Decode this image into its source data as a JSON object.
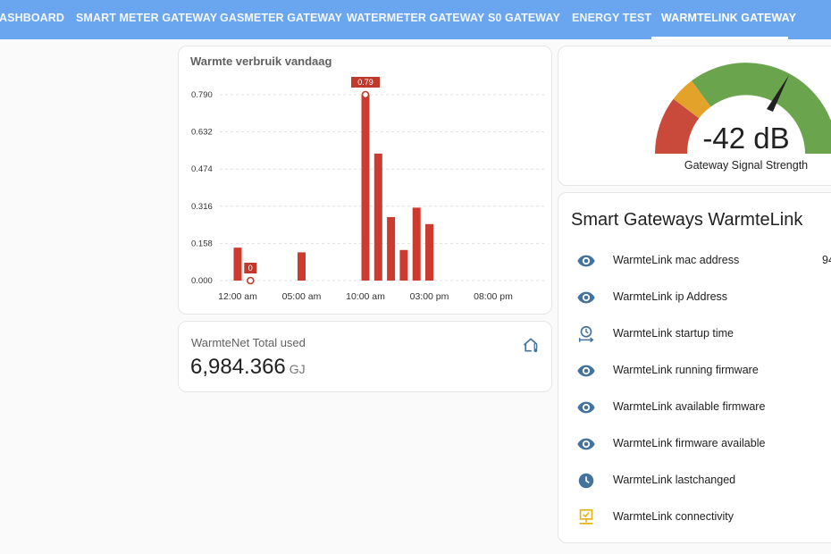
{
  "nav": {
    "tabs": [
      {
        "label": "ASHBOARD"
      },
      {
        "label": "SMART METER GATEWAY"
      },
      {
        "label": "GASMETER GATEWAY"
      },
      {
        "label": "WATERMETER GATEWAY"
      },
      {
        "label": "S0 GATEWAY"
      },
      {
        "label": "ENERGY TEST"
      },
      {
        "label": "WARMTELINK GATEWAY"
      }
    ],
    "active_index": 6
  },
  "chart_card": {
    "title": "Warmte verbruik vandaag"
  },
  "chart_data": {
    "type": "bar",
    "title": "Warmte verbruik vandaag",
    "x_tick_labels": [
      "12:00 am",
      "05:00 am",
      "10:00 am",
      "03:00 pm",
      "08:00 pm"
    ],
    "y_tick_labels": [
      "0.000",
      "0.158",
      "0.316",
      "0.474",
      "0.632",
      "0.790"
    ],
    "ylim": [
      0,
      0.79
    ],
    "hours": [
      0,
      1,
      5,
      10,
      11,
      12,
      13,
      14,
      15
    ],
    "values": [
      0.14,
      0.0,
      0.12,
      0.79,
      0.54,
      0.27,
      0.13,
      0.31,
      0.24
    ],
    "annotations": [
      {
        "hour": 10,
        "text": "0.79"
      },
      {
        "hour": 1,
        "text": "0"
      }
    ],
    "grid": true,
    "color": "#cc3b2d"
  },
  "total_card": {
    "title": "WarmteNet Total used",
    "value": "6,984.366",
    "unit": "GJ",
    "icon": "home-thermometer-icon"
  },
  "gauge": {
    "value": "-42 dB",
    "label": "Gateway Signal Strength",
    "colors": {
      "red": "#c94a3b",
      "yellow": "#e3a32b",
      "green": "#6aa44c"
    }
  },
  "entities_card": {
    "title": "Smart Gateways WarmteLink",
    "rows": [
      {
        "icon": "eye-icon",
        "label": "WarmteLink mac address",
        "value": "94"
      },
      {
        "icon": "eye-icon",
        "label": "WarmteLink ip Address",
        "value": ""
      },
      {
        "icon": "timer-restart-icon",
        "label": "WarmteLink startup time",
        "value": ""
      },
      {
        "icon": "eye-icon",
        "label": "WarmteLink running firmware",
        "value": ""
      },
      {
        "icon": "eye-icon",
        "label": "WarmteLink available firmware",
        "value": ""
      },
      {
        "icon": "eye-icon",
        "label": "WarmteLink firmware available",
        "value": ""
      },
      {
        "icon": "clock-icon",
        "label": "WarmteLink lastchanged",
        "value": ""
      },
      {
        "icon": "lan-connect-icon",
        "label": "WarmteLink connectivity",
        "value": ""
      }
    ]
  }
}
